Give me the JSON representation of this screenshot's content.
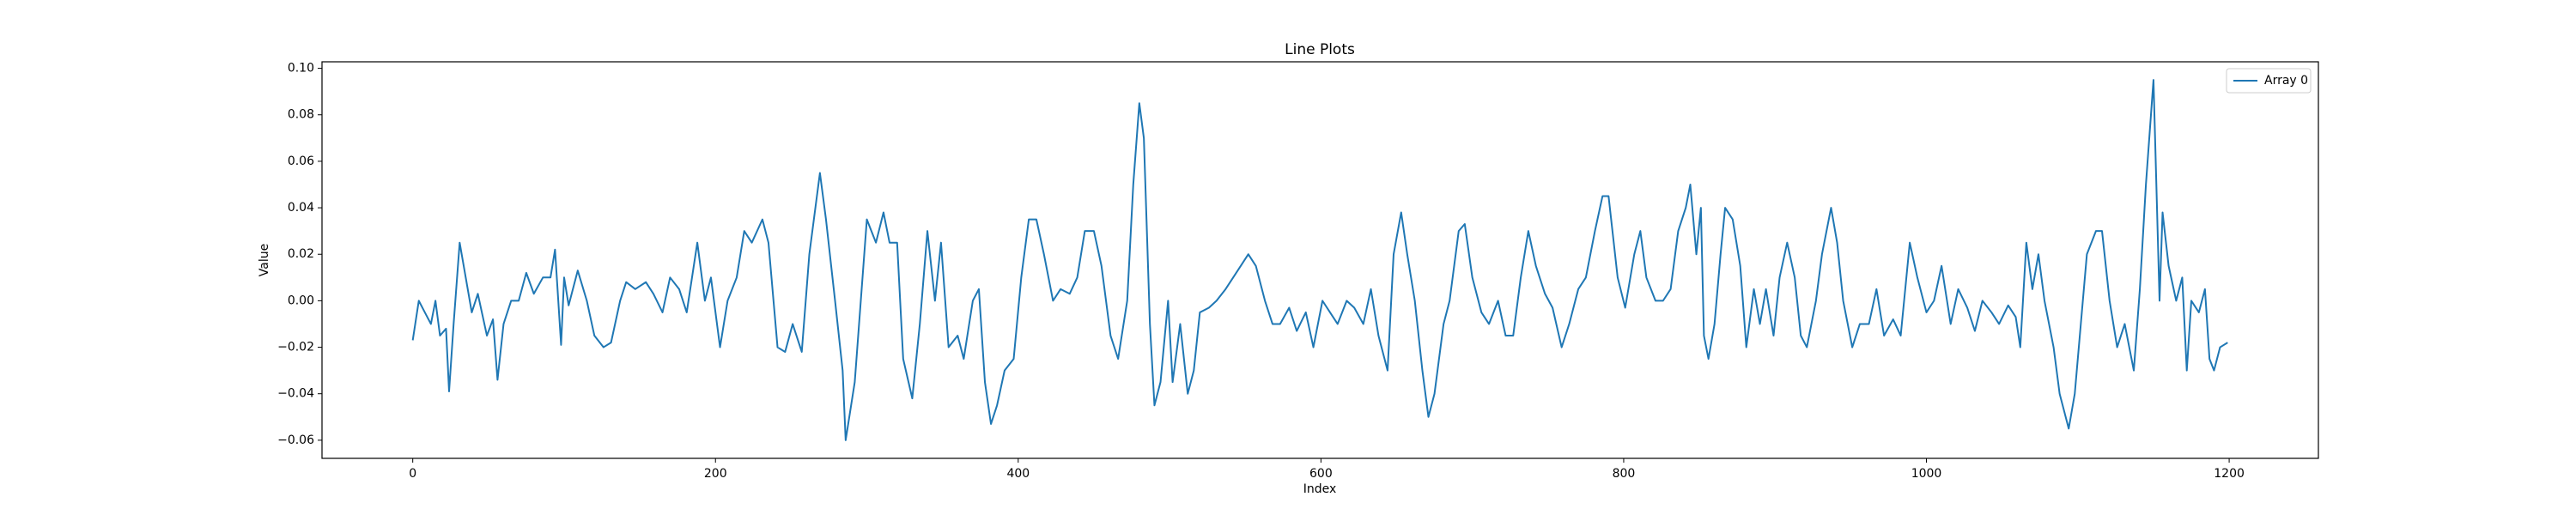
{
  "chart_data": {
    "type": "line",
    "title": "Line Plots",
    "xlabel": "Index",
    "ylabel": "Value",
    "x": [
      0,
      4,
      8,
      12,
      15,
      18,
      22,
      24,
      27,
      31,
      35,
      39,
      43,
      49,
      53,
      56,
      60,
      65,
      70,
      75,
      80,
      86,
      91,
      94,
      98,
      100,
      103,
      109,
      115,
      120,
      126,
      131,
      137,
      141,
      147,
      154,
      159,
      165,
      170,
      176,
      181,
      188,
      193,
      197,
      203,
      208,
      214,
      219,
      224,
      231,
      235,
      241,
      246,
      251,
      257,
      262,
      269,
      273,
      279,
      284,
      286,
      292,
      296,
      300,
      306,
      311,
      315,
      320,
      324,
      330,
      335,
      340,
      345,
      349,
      354,
      360,
      364,
      370,
      374,
      378,
      382,
      386,
      391,
      397,
      402,
      407,
      412,
      417,
      423,
      428,
      434,
      439,
      444,
      450,
      455,
      461,
      466,
      472,
      476,
      480,
      483,
      487,
      490,
      494,
      499,
      502,
      507,
      512,
      516,
      520,
      526,
      531,
      537,
      542,
      547,
      552,
      557,
      563,
      568,
      573,
      579,
      584,
      590,
      595,
      601,
      606,
      611,
      617,
      622,
      628,
      633,
      638,
      644,
      648,
      653,
      657,
      662,
      667,
      671,
      675,
      681,
      685,
      691,
      695,
      700,
      706,
      711,
      717,
      722,
      727,
      732,
      737,
      742,
      748,
      753,
      759,
      764,
      770,
      775,
      781,
      786,
      790,
      796,
      801,
      807,
      811,
      815,
      821,
      826,
      831,
      836,
      841,
      844,
      848,
      851,
      853,
      856,
      860,
      864,
      867,
      872,
      877,
      881,
      886,
      890,
      894,
      899,
      903,
      908,
      913,
      917,
      921,
      927,
      931,
      937,
      941,
      945,
      951,
      956,
      962,
      967,
      972,
      978,
      983,
      989,
      994,
      1000,
      1005,
      1010,
      1016,
      1021,
      1027,
      1032,
      1037,
      1043,
      1048,
      1054,
      1059,
      1062,
      1066,
      1070,
      1074,
      1078,
      1084,
      1088,
      1094,
      1098,
      1102,
      1106,
      1112,
      1116,
      1121,
      1126,
      1131,
      1137,
      1141,
      1145,
      1150,
      1154,
      1156,
      1160,
      1165,
      1169,
      1172,
      1175,
      1180,
      1184,
      1187,
      1190,
      1194,
      1199
    ],
    "series": [
      {
        "name": "Array 0",
        "color": "#1f77b4",
        "values": [
          -0.017,
          0.0,
          -0.005,
          -0.01,
          0.0,
          -0.015,
          -0.012,
          -0.039,
          -0.01,
          0.025,
          0.01,
          -0.005,
          0.003,
          -0.015,
          -0.008,
          -0.034,
          -0.01,
          0.0,
          0.0,
          0.012,
          0.003,
          0.01,
          0.01,
          0.022,
          -0.019,
          0.01,
          -0.002,
          0.013,
          0.0,
          -0.015,
          -0.02,
          -0.018,
          0.0,
          0.008,
          0.005,
          0.008,
          0.003,
          -0.005,
          0.01,
          0.005,
          -0.005,
          0.025,
          0.0,
          0.01,
          -0.02,
          0.0,
          0.01,
          0.03,
          0.025,
          0.035,
          0.025,
          -0.02,
          -0.022,
          -0.01,
          -0.022,
          0.02,
          0.055,
          0.035,
          0.0,
          -0.03,
          -0.06,
          -0.035,
          0.0,
          0.035,
          0.025,
          0.038,
          0.025,
          0.025,
          -0.025,
          -0.042,
          -0.01,
          0.03,
          0.0,
          0.025,
          -0.02,
          -0.015,
          -0.025,
          0.0,
          0.005,
          -0.035,
          -0.053,
          -0.045,
          -0.03,
          -0.025,
          0.01,
          0.035,
          0.035,
          0.02,
          0.0,
          0.005,
          0.003,
          0.01,
          0.03,
          0.03,
          0.015,
          -0.015,
          -0.025,
          0.0,
          0.05,
          0.085,
          0.07,
          -0.01,
          -0.045,
          -0.035,
          0.0,
          -0.035,
          -0.01,
          -0.04,
          -0.03,
          -0.005,
          -0.003,
          0.0,
          0.005,
          0.01,
          0.015,
          0.02,
          0.015,
          0.0,
          -0.01,
          -0.01,
          -0.003,
          -0.013,
          -0.005,
          -0.02,
          0.0,
          -0.005,
          -0.01,
          0.0,
          -0.003,
          -0.01,
          0.005,
          -0.015,
          -0.03,
          0.02,
          0.038,
          0.02,
          0.0,
          -0.03,
          -0.05,
          -0.04,
          -0.01,
          0.0,
          0.03,
          0.033,
          0.01,
          -0.005,
          -0.01,
          0.0,
          -0.015,
          -0.015,
          0.01,
          0.03,
          0.015,
          0.003,
          -0.003,
          -0.02,
          -0.01,
          0.005,
          0.01,
          0.03,
          0.045,
          0.045,
          0.01,
          -0.003,
          0.02,
          0.03,
          0.01,
          0.0,
          0.0,
          0.005,
          0.03,
          0.04,
          0.05,
          0.02,
          0.04,
          -0.015,
          -0.025,
          -0.01,
          0.02,
          0.04,
          0.035,
          0.015,
          -0.02,
          0.005,
          -0.01,
          0.005,
          -0.015,
          0.01,
          0.025,
          0.01,
          -0.015,
          -0.02,
          0.0,
          0.02,
          0.04,
          0.025,
          0.0,
          -0.02,
          -0.01,
          -0.01,
          0.005,
          -0.015,
          -0.008,
          -0.015,
          0.025,
          0.01,
          -0.005,
          0.0,
          0.015,
          -0.01,
          0.005,
          -0.003,
          -0.013,
          0.0,
          -0.005,
          -0.01,
          -0.002,
          -0.007,
          -0.02,
          0.025,
          0.005,
          0.02,
          0.0,
          -0.02,
          -0.04,
          -0.055,
          -0.04,
          -0.01,
          0.02,
          0.03,
          0.03,
          0.0,
          -0.02,
          -0.01,
          -0.03,
          0.005,
          0.05,
          0.095,
          0.0,
          0.038,
          0.015,
          0.0,
          0.01,
          -0.03,
          0.0,
          -0.005,
          0.005,
          -0.025,
          -0.03,
          -0.02,
          -0.018
        ]
      }
    ],
    "xlim": [
      -59.95,
      1258.95
    ],
    "xticks": [
      0,
      200,
      400,
      600,
      800,
      1000,
      1200
    ],
    "ylim": [
      -0.0678,
      0.1028
    ],
    "yticks": [
      {
        "value": -0.06,
        "label": "−0.06"
      },
      {
        "value": -0.04,
        "label": "−0.04"
      },
      {
        "value": -0.02,
        "label": "−0.02"
      },
      {
        "value": 0,
        "label": "0.00"
      },
      {
        "value": 0.02,
        "label": "0.02"
      },
      {
        "value": 0.04,
        "label": "0.04"
      },
      {
        "value": 0.06,
        "label": "0.06"
      },
      {
        "value": 0.08,
        "label": "0.08"
      },
      {
        "value": 0.1,
        "label": "0.10"
      }
    ],
    "legend": "upper right"
  }
}
